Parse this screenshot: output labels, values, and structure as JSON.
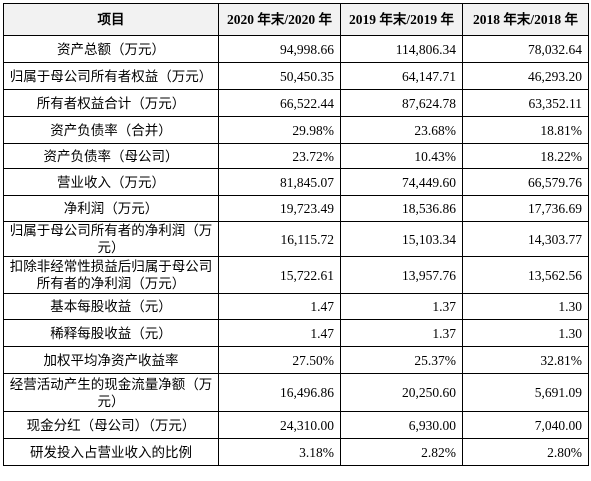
{
  "table": {
    "header": [
      "项目",
      "2020 年末/2020 年",
      "2019 年末/2019 年",
      "2018 年末/2018 年"
    ],
    "rows": [
      [
        "资产总额（万元）",
        "94,998.66",
        "114,806.34",
        "78,032.64"
      ],
      [
        "归属于母公司所有者权益（万元）",
        "50,450.35",
        "64,147.71",
        "46,293.20"
      ],
      [
        "所有者权益合计（万元）",
        "66,522.44",
        "87,624.78",
        "63,352.11"
      ],
      [
        "资产负债率（合并）",
        "29.98%",
        "23.68%",
        "18.81%"
      ],
      [
        "资产负债率（母公司）",
        "23.72%",
        "10.43%",
        "18.22%"
      ],
      [
        "营业收入（万元）",
        "81,845.07",
        "74,449.60",
        "66,579.76"
      ],
      [
        "净利润（万元）",
        "19,723.49",
        "18,536.86",
        "17,736.69"
      ],
      [
        "归属于母公司所有者的净利润（万元）",
        "16,115.72",
        "15,103.34",
        "14,303.77"
      ],
      [
        "扣除非经常性损益后归属于母公司所有者的净利润（万元）",
        "15,722.61",
        "13,957.76",
        "13,562.56"
      ],
      [
        "基本每股收益（元）",
        "1.47",
        "1.37",
        "1.30"
      ],
      [
        "稀释每股收益（元）",
        "1.47",
        "1.37",
        "1.30"
      ],
      [
        "加权平均净资产收益率",
        "27.50%",
        "25.37%",
        "32.81%"
      ],
      [
        "经营活动产生的现金流量净额（万元）",
        "16,496.86",
        "20,250.60",
        "5,691.09"
      ],
      [
        "现金分红（母公司）（万元）",
        "24,310.00",
        "6,930.00",
        "7,040.00"
      ],
      [
        "研发投入占营业收入的比例",
        "3.18%",
        "2.82%",
        "2.80%"
      ]
    ]
  }
}
